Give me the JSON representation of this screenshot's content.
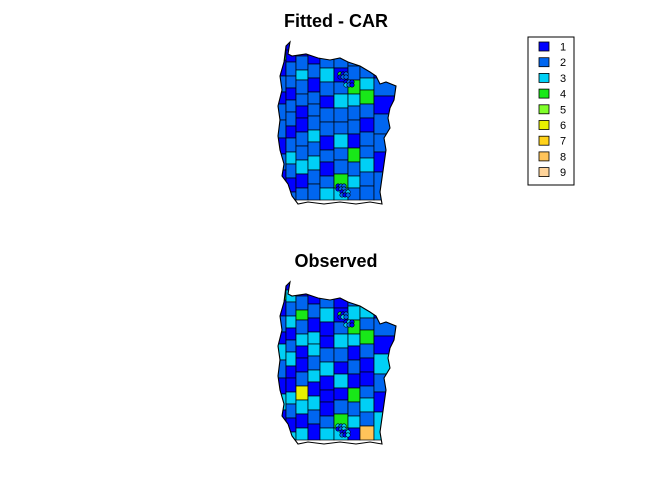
{
  "maps": [
    {
      "title": "Fitted - CAR",
      "region_classes": [
        4,
        1,
        2,
        1,
        2,
        2,
        1,
        2,
        1,
        3,
        2,
        1,
        1,
        2,
        2,
        1,
        2,
        2,
        1,
        2,
        3,
        2,
        1,
        2,
        1,
        2,
        3,
        2,
        2,
        1,
        1,
        2,
        2,
        3,
        1,
        2,
        1,
        1,
        2,
        1,
        2,
        2,
        2,
        3,
        2,
        3,
        2,
        2,
        4,
        2,
        3,
        2,
        1,
        2,
        2,
        1,
        2,
        1,
        2,
        3,
        4,
        2,
        1,
        2,
        3,
        2,
        2,
        3,
        2,
        2,
        4,
        3,
        1,
        2,
        2,
        4,
        3,
        2,
        2,
        1,
        4,
        2,
        3,
        2,
        4,
        2,
        2,
        3,
        4,
        2,
        1,
        2,
        2,
        3,
        2,
        2
      ]
    },
    {
      "title": "Observed",
      "region_classes": [
        4,
        1,
        2,
        1,
        3,
        2,
        1,
        3,
        1,
        3,
        2,
        1,
        3,
        2,
        3,
        1,
        2,
        3,
        1,
        1,
        3,
        2,
        1,
        3,
        1,
        2,
        4,
        2,
        3,
        1,
        1,
        2,
        6,
        3,
        1,
        3,
        8,
        1,
        2,
        1,
        3,
        3,
        2,
        3,
        1,
        3,
        2,
        1,
        4,
        2,
        3,
        1,
        1,
        2,
        3,
        1,
        1,
        1,
        2,
        3,
        4,
        1,
        1,
        2,
        3,
        2,
        1,
        3,
        1,
        2,
        4,
        3,
        1,
        2,
        3,
        4,
        3,
        1,
        2,
        1,
        4,
        2,
        3,
        1,
        4,
        2,
        3,
        2,
        4,
        2,
        1,
        1,
        2,
        3,
        2,
        8
      ]
    }
  ],
  "legend": {
    "items": [
      {
        "label": "1",
        "color": "#0000ff"
      },
      {
        "label": "2",
        "color": "#0066f0"
      },
      {
        "label": "3",
        "color": "#00d0f6"
      },
      {
        "label": "4",
        "color": "#18e818"
      },
      {
        "label": "5",
        "color": "#80ff2a"
      },
      {
        "label": "6",
        "color": "#e8f000"
      },
      {
        "label": "7",
        "color": "#ffd21a"
      },
      {
        "label": "8",
        "color": "#ffc45a"
      },
      {
        "label": "9",
        "color": "#ffd49a"
      }
    ]
  }
}
